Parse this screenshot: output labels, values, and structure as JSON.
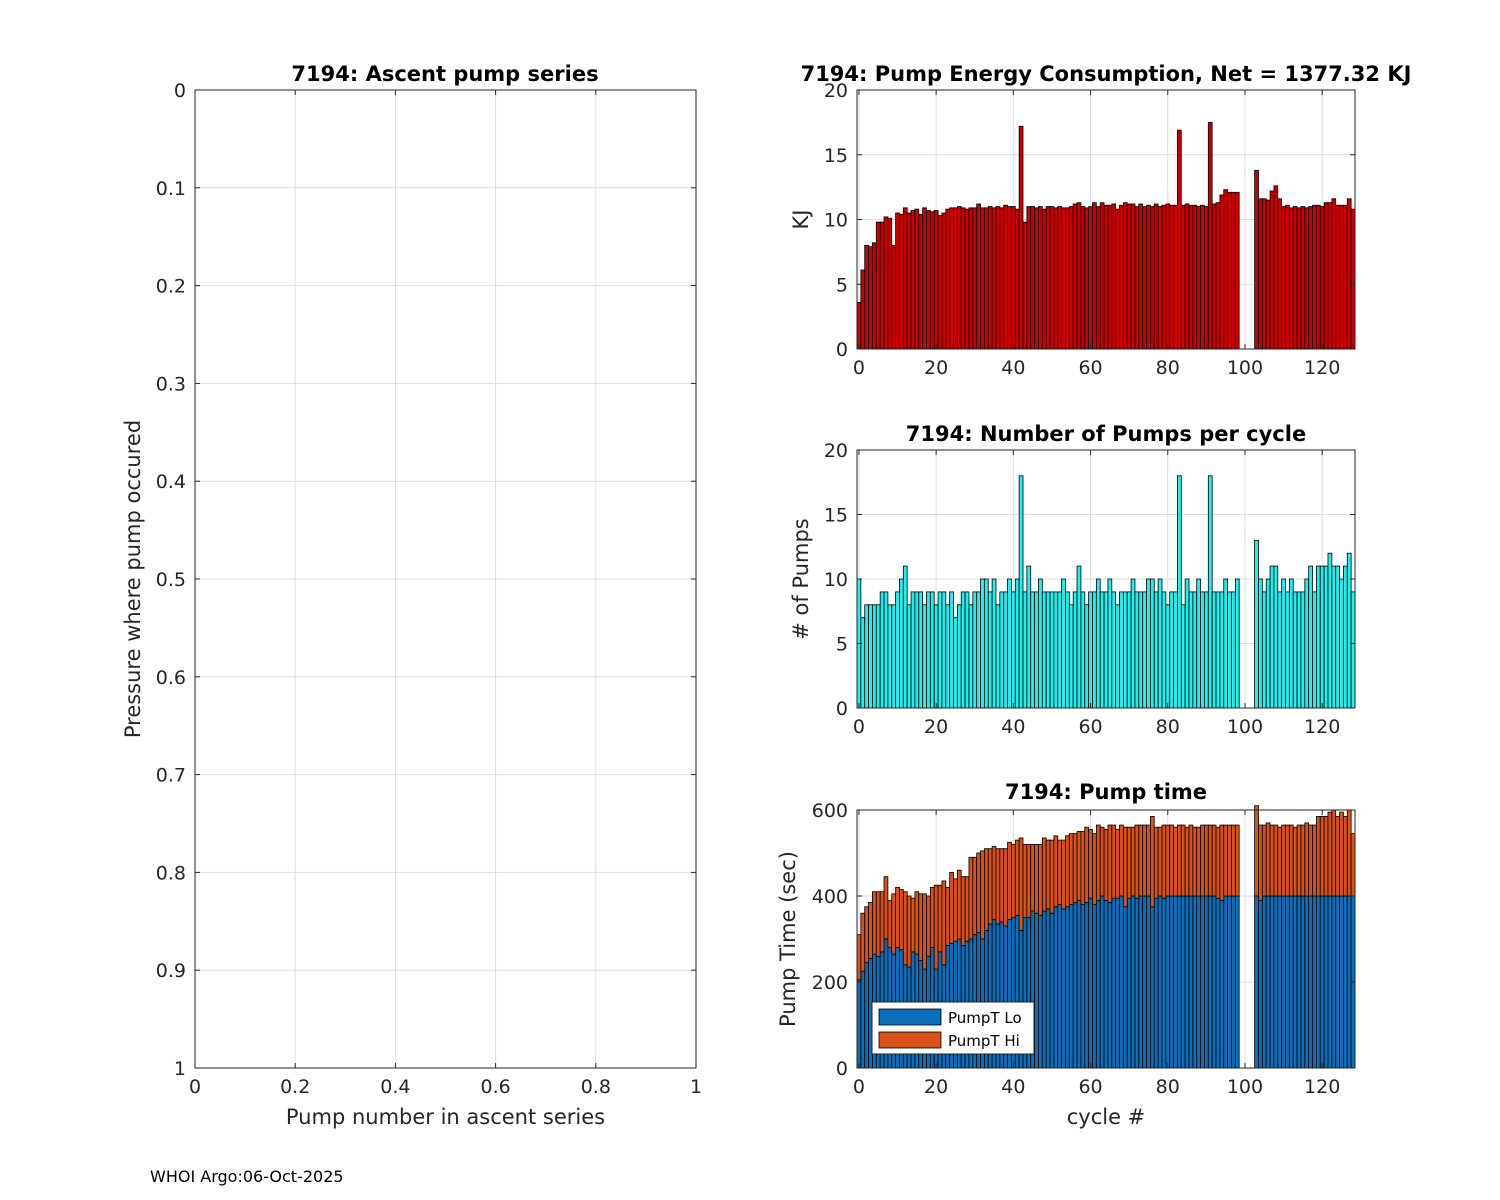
{
  "footer": "WHOI Argo:06-Oct-2025",
  "colors": {
    "energy_bar": "#cc0000",
    "pumps_bar": "#22eeee",
    "pump_lo": "#0b6fba",
    "pump_hi": "#d95319"
  },
  "chart_data": [
    {
      "id": "ascent",
      "type": "scatter",
      "title": "7194: Ascent pump series",
      "xlabel": "Pump number in ascent series",
      "ylabel": "Pressure where pump occured",
      "xlim": [
        0,
        1
      ],
      "ylim": [
        0,
        1
      ],
      "y_reversed": true,
      "xticks": [
        0,
        0.2,
        0.4,
        0.6,
        0.8,
        1
      ],
      "xtick_labels": [
        "0",
        "0.2",
        "0.4",
        "0.6",
        "0.8",
        "1"
      ],
      "yticks": [
        0,
        0.1,
        0.2,
        0.3,
        0.4,
        0.5,
        0.6,
        0.7,
        0.8,
        0.9,
        1
      ],
      "ytick_labels": [
        "0",
        "0.1",
        "0.2",
        "0.3",
        "0.4",
        "0.5",
        "0.6",
        "0.7",
        "0.8",
        "0.9",
        "1"
      ],
      "grid": true,
      "series": []
    },
    {
      "id": "energy",
      "type": "bar",
      "title": "7194: Pump Energy Consumption,  Net = 1377.32 KJ",
      "xlabel": "",
      "ylabel": "KJ",
      "xlim": [
        -0.5,
        128.5
      ],
      "ylim": [
        0,
        20
      ],
      "xticks": [
        0,
        20,
        40,
        60,
        80,
        100,
        120
      ],
      "xtick_labels": [
        "0",
        "20",
        "40",
        "60",
        "80",
        "100",
        "120"
      ],
      "yticks": [
        0,
        5,
        10,
        15,
        20
      ],
      "ytick_labels": [
        "0",
        "5",
        "10",
        "15",
        "20"
      ],
      "grid": true,
      "x_start": 0,
      "values": [
        3.6,
        6.1,
        8.0,
        7.9,
        8.2,
        9.8,
        9.8,
        10.2,
        10.1,
        8.0,
        10.5,
        10.4,
        10.9,
        10.5,
        10.7,
        10.8,
        10.4,
        10.9,
        10.7,
        10.6,
        10.7,
        10.3,
        10.5,
        10.8,
        10.9,
        10.9,
        11.0,
        10.9,
        10.8,
        10.9,
        10.9,
        11.2,
        10.9,
        10.9,
        11.0,
        10.9,
        11.0,
        10.9,
        11.1,
        11.0,
        11.0,
        10.8,
        17.2,
        9.8,
        11.0,
        11.0,
        10.9,
        11.0,
        10.8,
        11.0,
        11.0,
        10.9,
        11.0,
        10.9,
        10.9,
        11.0,
        11.2,
        11.3,
        11.0,
        10.9,
        11.0,
        11.3,
        11.0,
        11.3,
        11.1,
        11.1,
        11.2,
        10.8,
        11.1,
        11.3,
        11.2,
        11.2,
        11.0,
        11.2,
        11.0,
        11.1,
        11.0,
        11.2,
        11.0,
        11.1,
        11.2,
        11.1,
        11.1,
        16.9,
        11.1,
        11.2,
        11.1,
        11.1,
        11.0,
        11.1,
        11.0,
        17.5,
        11.2,
        11.3,
        11.9,
        12.3,
        12.1,
        12.1,
        12.1,
        null,
        null,
        null,
        null,
        13.8,
        11.6,
        11.6,
        11.5,
        12.2,
        12.6,
        11.6,
        11.0,
        11.1,
        10.9,
        11.0,
        10.9,
        11.0,
        10.9,
        11.0,
        11.1,
        11.1,
        11.0,
        11.3,
        11.3,
        11.6,
        11.1,
        11.1,
        11.1,
        11.6,
        10.8
      ]
    },
    {
      "id": "pumps",
      "type": "bar",
      "title": "7194: Number of Pumps per cycle",
      "xlabel": "",
      "ylabel": "# of Pumps",
      "xlim": [
        -0.5,
        128.5
      ],
      "ylim": [
        0,
        20
      ],
      "xticks": [
        0,
        20,
        40,
        60,
        80,
        100,
        120
      ],
      "xtick_labels": [
        "0",
        "20",
        "40",
        "60",
        "80",
        "100",
        "120"
      ],
      "yticks": [
        0,
        5,
        10,
        15,
        20
      ],
      "ytick_labels": [
        "0",
        "5",
        "10",
        "15",
        "20"
      ],
      "grid": true,
      "x_start": 0,
      "values": [
        10,
        7,
        8,
        8,
        8,
        8,
        9,
        9,
        8,
        8,
        9,
        10,
        11,
        8,
        9,
        9,
        9,
        8,
        9,
        9,
        8,
        9,
        9,
        8,
        9,
        7,
        8,
        9,
        9,
        8,
        9,
        9,
        10,
        10,
        9,
        10,
        8,
        9,
        9,
        10,
        9,
        10,
        18,
        9,
        11,
        9,
        9,
        10,
        9,
        9,
        9,
        9,
        9,
        10,
        9,
        8,
        9,
        11,
        9,
        8,
        9,
        9,
        10,
        9,
        9,
        10,
        9,
        8,
        9,
        9,
        9,
        10,
        9,
        9,
        9,
        10,
        10,
        9,
        10,
        9,
        8,
        9,
        9,
        18,
        8,
        10,
        9,
        9,
        10,
        9,
        9,
        18,
        9,
        9,
        9,
        10,
        9,
        9,
        10,
        null,
        null,
        null,
        null,
        13,
        10,
        9,
        10,
        11,
        11,
        9,
        10,
        9,
        10,
        9,
        9,
        9,
        10,
        11,
        9,
        11,
        11,
        11,
        12,
        11,
        11,
        10,
        11,
        12,
        9
      ]
    },
    {
      "id": "pumptime",
      "type": "bar",
      "stacked": true,
      "title": "7194: Pump time",
      "xlabel": "cycle #",
      "ylabel": "Pump Time (sec)",
      "xlim": [
        -0.5,
        128.5
      ],
      "ylim": [
        0,
        600
      ],
      "xticks": [
        0,
        20,
        40,
        60,
        80,
        100,
        120
      ],
      "xtick_labels": [
        "0",
        "20",
        "40",
        "60",
        "80",
        "100",
        "120"
      ],
      "yticks": [
        0,
        200,
        400,
        600
      ],
      "ytick_labels": [
        "0",
        "200",
        "400",
        "600"
      ],
      "grid": true,
      "x_start": 0,
      "legend": {
        "location": "bottom-left",
        "entries": [
          "PumpT Lo",
          "PumpT Hi"
        ]
      },
      "series": [
        {
          "name": "PumpT Lo",
          "values": [
            205,
            225,
            245,
            255,
            265,
            260,
            270,
            300,
            280,
            265,
            280,
            275,
            240,
            235,
            270,
            265,
            250,
            230,
            260,
            280,
            230,
            270,
            240,
            285,
            290,
            295,
            300,
            285,
            295,
            300,
            310,
            315,
            300,
            320,
            335,
            345,
            335,
            340,
            330,
            345,
            350,
            355,
            320,
            350,
            350,
            365,
            360,
            355,
            365,
            370,
            360,
            375,
            380,
            370,
            375,
            380,
            385,
            390,
            380,
            385,
            395,
            380,
            390,
            400,
            390,
            385,
            395,
            395,
            400,
            375,
            395,
            400,
            395,
            400,
            400,
            400,
            375,
            395,
            400,
            395,
            400,
            400,
            400,
            400,
            400,
            400,
            400,
            400,
            400,
            400,
            400,
            400,
            400,
            395,
            390,
            400,
            400,
            400,
            400,
            null,
            null,
            null,
            null,
            400,
            390,
            400,
            400,
            400,
            400,
            400,
            400,
            400,
            400,
            400,
            400,
            400,
            400,
            400,
            400,
            400,
            400,
            400,
            400,
            400,
            400,
            400,
            400,
            400,
            400
          ]
        },
        {
          "name": "PumpT Hi",
          "values": [
            105,
            135,
            130,
            130,
            145,
            150,
            140,
            145,
            110,
            140,
            140,
            140,
            170,
            165,
            125,
            145,
            155,
            175,
            140,
            140,
            195,
            155,
            195,
            135,
            165,
            145,
            160,
            160,
            150,
            190,
            180,
            185,
            205,
            190,
            175,
            170,
            175,
            170,
            180,
            180,
            170,
            175,
            215,
            170,
            170,
            155,
            160,
            165,
            170,
            160,
            170,
            165,
            150,
            160,
            165,
            165,
            160,
            160,
            170,
            175,
            160,
            165,
            175,
            160,
            165,
            180,
            170,
            160,
            165,
            185,
            165,
            160,
            170,
            165,
            165,
            165,
            210,
            165,
            160,
            170,
            165,
            165,
            160,
            165,
            165,
            160,
            165,
            160,
            160,
            165,
            165,
            165,
            165,
            165,
            175,
            165,
            165,
            165,
            165,
            null,
            null,
            null,
            null,
            210,
            175,
            165,
            170,
            165,
            165,
            160,
            165,
            165,
            165,
            160,
            165,
            165,
            170,
            165,
            165,
            185,
            185,
            185,
            195,
            200,
            185,
            195,
            185,
            200,
            145
          ]
        }
      ]
    }
  ]
}
